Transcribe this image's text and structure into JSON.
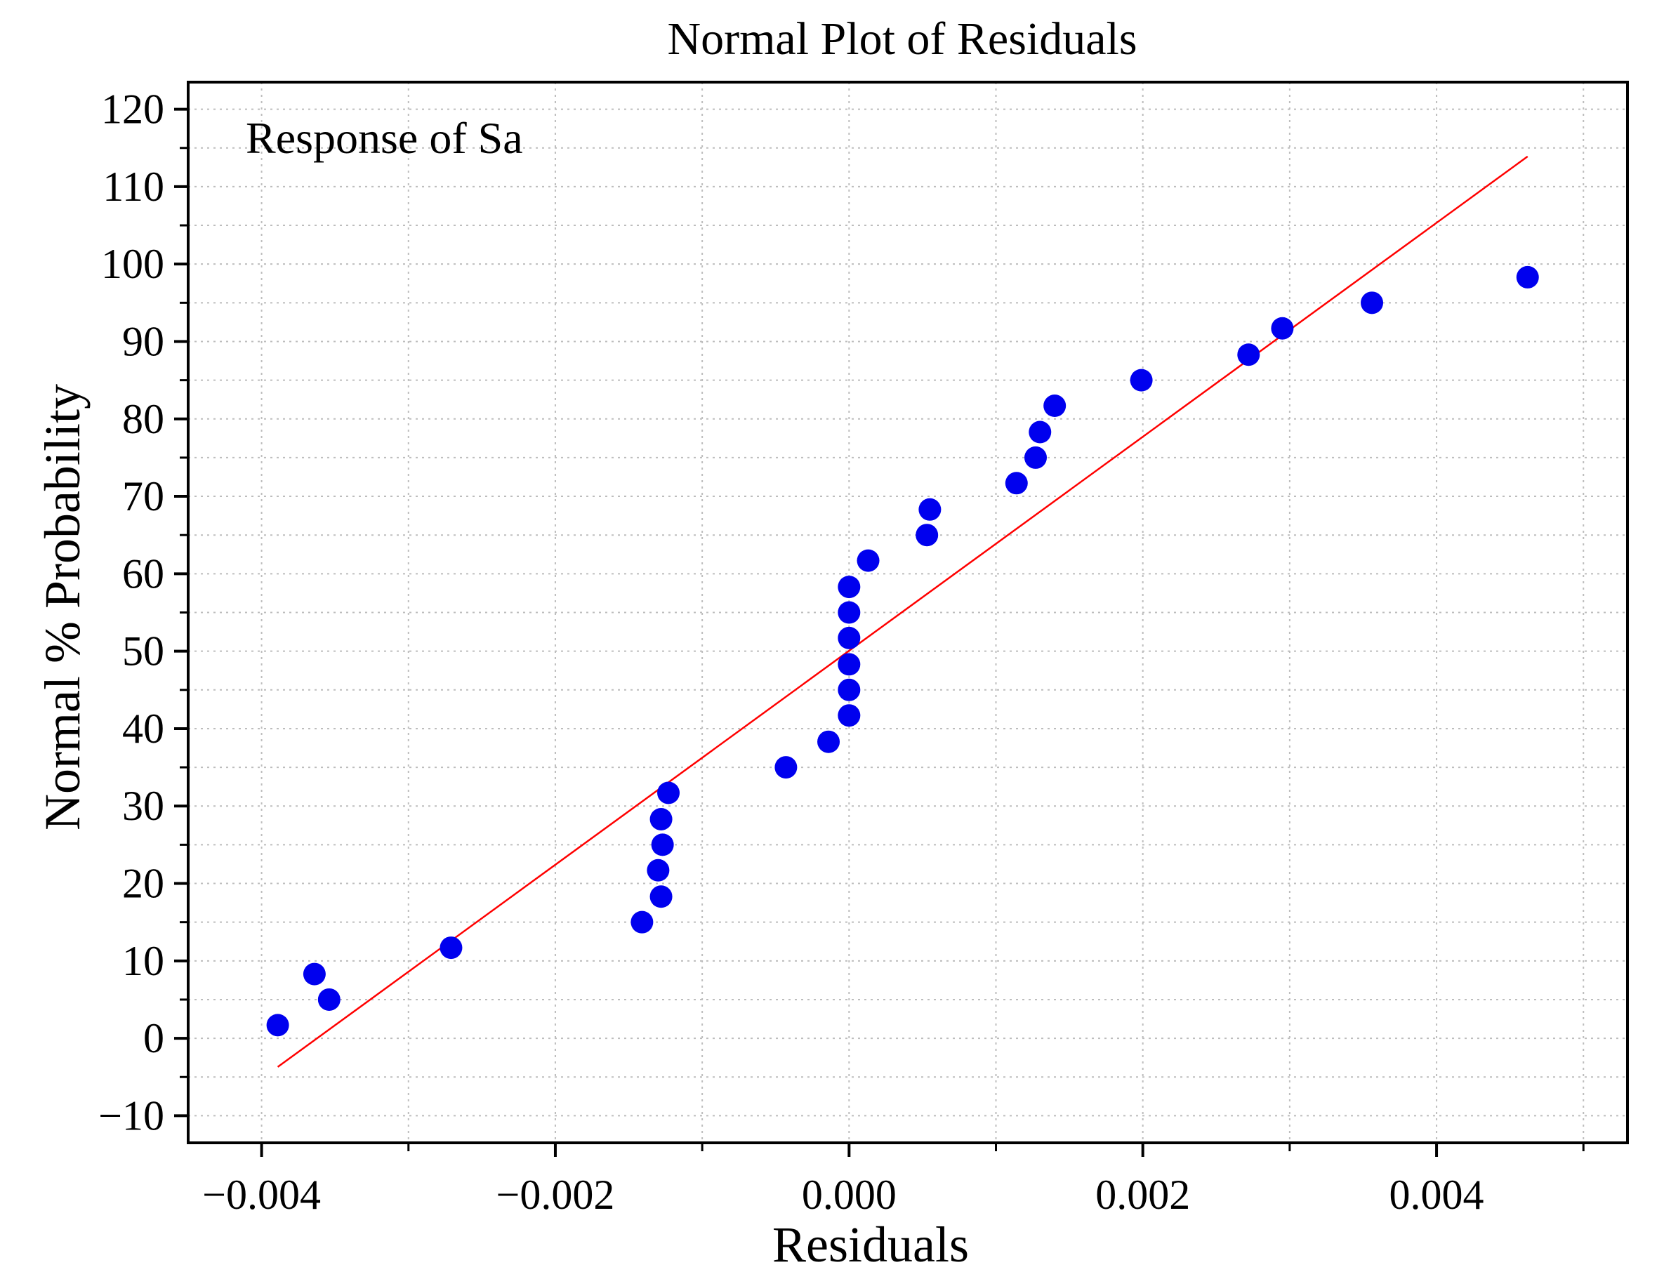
{
  "chart_data": {
    "type": "scatter",
    "title": "Normal Plot of Residuals",
    "annotation": "Response of Sa",
    "xlabel": "Residuals",
    "ylabel": "Normal % Probability",
    "xlim": [
      -0.0045,
      0.0053
    ],
    "ylim": [
      -13.5,
      123.5
    ],
    "x_ticks": [
      -0.004,
      -0.002,
      0.0,
      0.002,
      0.004
    ],
    "x_tick_labels": [
      "−0.004",
      "−0.002",
      "0.000",
      "0.002",
      "0.004"
    ],
    "x_minor_ticks": [
      -0.003,
      -0.001,
      0.001,
      0.003,
      0.005
    ],
    "y_ticks": [
      -10,
      0,
      10,
      20,
      30,
      40,
      50,
      60,
      70,
      80,
      90,
      100,
      110,
      120
    ],
    "y_tick_labels": [
      "−10",
      "0",
      "10",
      "20",
      "30",
      "40",
      "50",
      "60",
      "70",
      "80",
      "90",
      "100",
      "110",
      "120"
    ],
    "y_minor_ticks": [
      -5,
      5,
      15,
      25,
      35,
      45,
      55,
      65,
      75,
      85,
      95,
      105,
      115
    ],
    "grid": true,
    "series": [
      {
        "name": "Residuals",
        "color": "#0000ee",
        "points": [
          {
            "x": -0.00389,
            "y": 1.7
          },
          {
            "x": -0.00364,
            "y": 8.3
          },
          {
            "x": -0.00354,
            "y": 5.0
          },
          {
            "x": -0.00271,
            "y": 11.7
          },
          {
            "x": -0.00141,
            "y": 15.0
          },
          {
            "x": -0.00128,
            "y": 18.3
          },
          {
            "x": -0.0013,
            "y": 21.7
          },
          {
            "x": -0.00127,
            "y": 25.0
          },
          {
            "x": -0.00128,
            "y": 28.3
          },
          {
            "x": -0.00123,
            "y": 31.7
          },
          {
            "x": -0.00043,
            "y": 35.0
          },
          {
            "x": -0.00014,
            "y": 38.3
          },
          {
            "x": 0.0,
            "y": 41.7
          },
          {
            "x": 0.0,
            "y": 45.0
          },
          {
            "x": 0.0,
            "y": 48.3
          },
          {
            "x": 0.0,
            "y": 51.7
          },
          {
            "x": 0.0,
            "y": 55.0
          },
          {
            "x": 0.0,
            "y": 58.3
          },
          {
            "x": 0.00013,
            "y": 61.7
          },
          {
            "x": 0.00053,
            "y": 65.0
          },
          {
            "x": 0.00055,
            "y": 68.3
          },
          {
            "x": 0.00114,
            "y": 71.7
          },
          {
            "x": 0.00127,
            "y": 75.0
          },
          {
            "x": 0.0013,
            "y": 78.3
          },
          {
            "x": 0.0014,
            "y": 81.7
          },
          {
            "x": 0.00199,
            "y": 85.0
          },
          {
            "x": 0.00272,
            "y": 88.3
          },
          {
            "x": 0.00295,
            "y": 91.7
          },
          {
            "x": 0.00356,
            "y": 95.0
          },
          {
            "x": 0.00462,
            "y": 98.3
          }
        ]
      }
    ],
    "fit_line": {
      "name": "Normal reference line",
      "color": "#ff0000",
      "x": [
        -0.00389,
        0.00462
      ],
      "y": [
        -3.7,
        113.9
      ]
    }
  }
}
